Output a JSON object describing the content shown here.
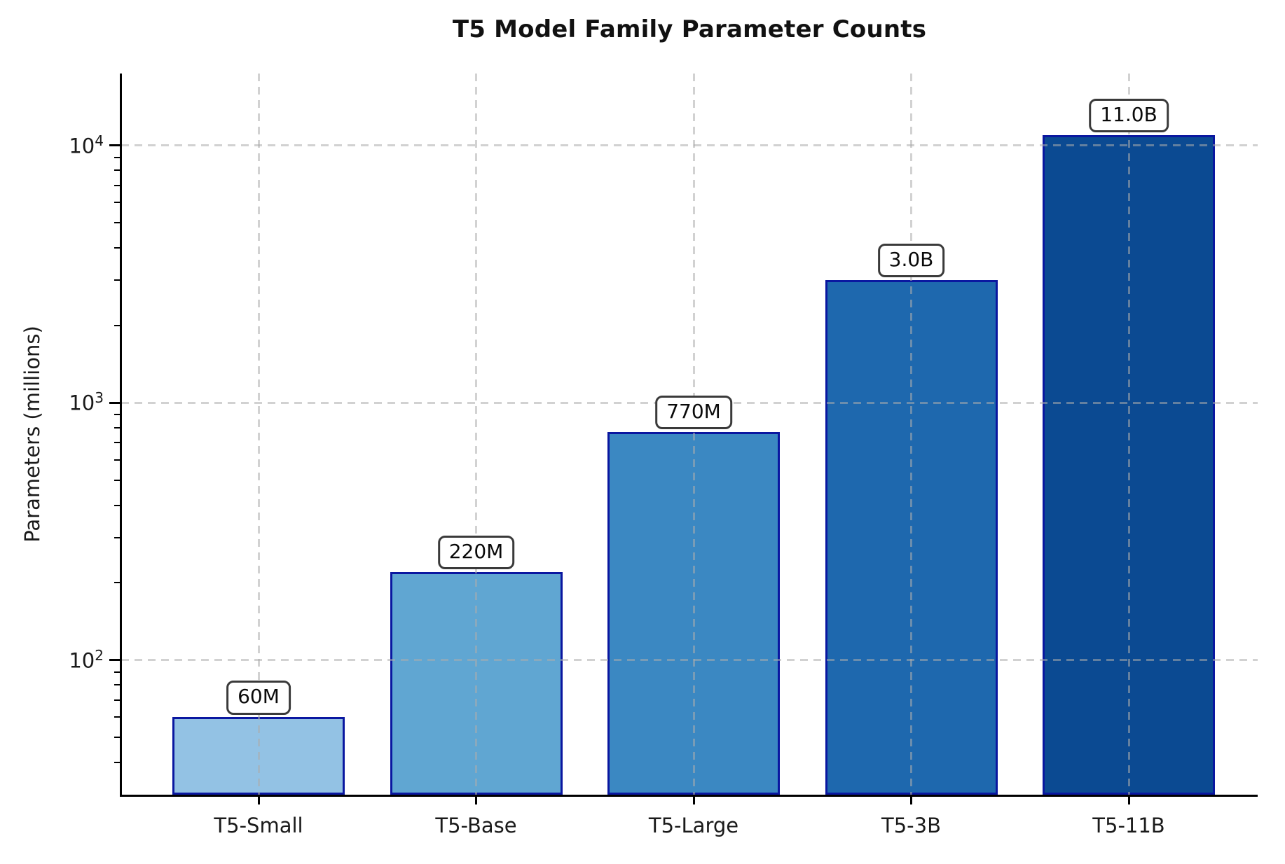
{
  "chart_data": {
    "type": "bar",
    "title": "T5 Model Family Parameter Counts",
    "ylabel": "Parameters (millions)",
    "xlabel": "",
    "yscale": "log",
    "ylim": [
      30,
      19000
    ],
    "grid": {
      "style": "dashed",
      "color": "#cfcfcf",
      "axes": "both",
      "drawn_over_bars": true
    },
    "legend": "none",
    "categories": [
      "T5-Small",
      "T5-Base",
      "T5-Large",
      "T5-3B",
      "T5-11B"
    ],
    "values": [
      60,
      220,
      770,
      3000,
      11000
    ],
    "value_labels": [
      "60M",
      "220M",
      "770M",
      "3.0B",
      "11.0B"
    ],
    "y_ticks": [
      {
        "exp": 2
      },
      {
        "exp": 3
      },
      {
        "exp": 4
      }
    ],
    "bar_colors": [
      "#93c2e4",
      "#60a6d2",
      "#3b88c2",
      "#1e68ae",
      "#0b4a92"
    ],
    "bar_edge_color": "#0a17a0",
    "value_label_box": {
      "bg": "#ffffff",
      "border": "#3a3a3a",
      "text": "#0a0a0a"
    }
  }
}
